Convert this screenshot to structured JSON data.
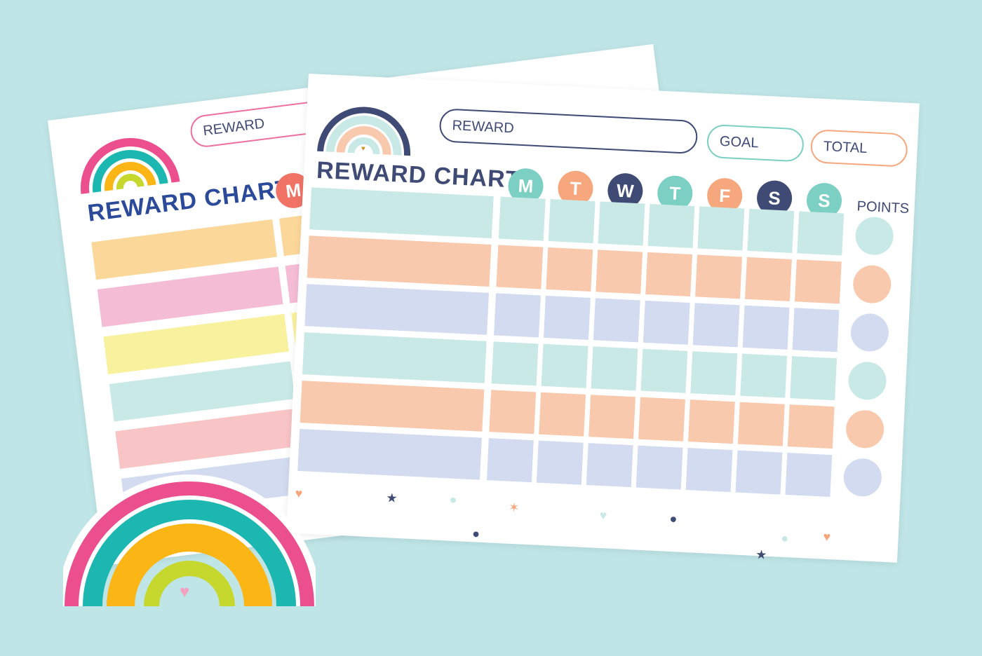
{
  "back_sheet": {
    "reward_label": "REWARD",
    "title": "REWARD CHART",
    "first_day": "M",
    "row_colors": [
      "#fcd79a",
      "#f5bcd6",
      "#f8f29f",
      "#c9e9e6",
      "#f8c4c6",
      "#d3dbf0"
    ]
  },
  "front_sheet": {
    "reward_label": "REWARD",
    "goal_label": "GOAL",
    "total_label": "TOTAL",
    "title": "REWARD CHART",
    "points_label": "POINTS",
    "days": [
      {
        "letter": "M",
        "color": "#7ccfc3"
      },
      {
        "letter": "T",
        "color": "#f6a77e"
      },
      {
        "letter": "W",
        "color": "#3f4a75"
      },
      {
        "letter": "T",
        "color": "#7ccfc3"
      },
      {
        "letter": "F",
        "color": "#f6a77e"
      },
      {
        "letter": "S",
        "color": "#3f4a75"
      },
      {
        "letter": "S",
        "color": "#7ccfc3"
      }
    ],
    "row_colors": [
      "#c9e9e6",
      "#f9c9ae",
      "#d3dbf0",
      "#c9e9e6",
      "#f9c9ae",
      "#d3dbf0"
    ]
  },
  "colors": {
    "background": "#bfe5e7",
    "navy": "#3f4a75",
    "teal": "#7ccfc3",
    "peach": "#f6a77e"
  }
}
